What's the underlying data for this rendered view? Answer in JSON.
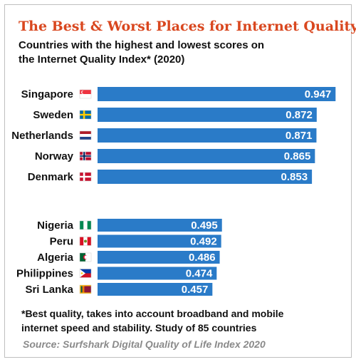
{
  "title": "The Best & Worst Places for Internet Quality",
  "subtitle_lines": [
    "Countries with the highest and lowest scores on",
    "the Internet Quality Index* (2020)"
  ],
  "footnote_lines": [
    "*Best quality, takes into account broadband and mobile",
    "internet speed and stability. Study of 85 countries"
  ],
  "source": "Source: Surfshark Digital Quality of Life Index 2020",
  "colors": {
    "bar": "#2a7bc8",
    "title": "#d9471f",
    "source": "#8a8a8a"
  },
  "chart_data": {
    "type": "bar",
    "orientation": "horizontal",
    "xlim": [
      0,
      1
    ],
    "groups": [
      {
        "categories": [
          "Singapore",
          "Sweden",
          "Netherlands",
          "Norway",
          "Denmark"
        ],
        "values": [
          0.947,
          0.872,
          0.871,
          0.865,
          0.853
        ],
        "labels": [
          "0.947",
          "0.872",
          "0.871",
          "0.865",
          "0.853"
        ],
        "flags": [
          "singapore-flag-icon",
          "sweden-flag-icon",
          "netherlands-flag-icon",
          "norway-flag-icon",
          "denmark-flag-icon"
        ]
      },
      {
        "categories": [
          "Nigeria",
          "Peru",
          "Algeria",
          "Philippines",
          "Sri Lanka"
        ],
        "values": [
          0.495,
          0.492,
          0.486,
          0.474,
          0.457
        ],
        "labels": [
          "0.495",
          "0.492",
          "0.486",
          "0.474",
          "0.457"
        ],
        "flags": [
          "nigeria-flag-icon",
          "peru-flag-icon",
          "algeria-flag-icon",
          "philippines-flag-icon",
          "sri-lanka-flag-icon"
        ]
      }
    ]
  }
}
